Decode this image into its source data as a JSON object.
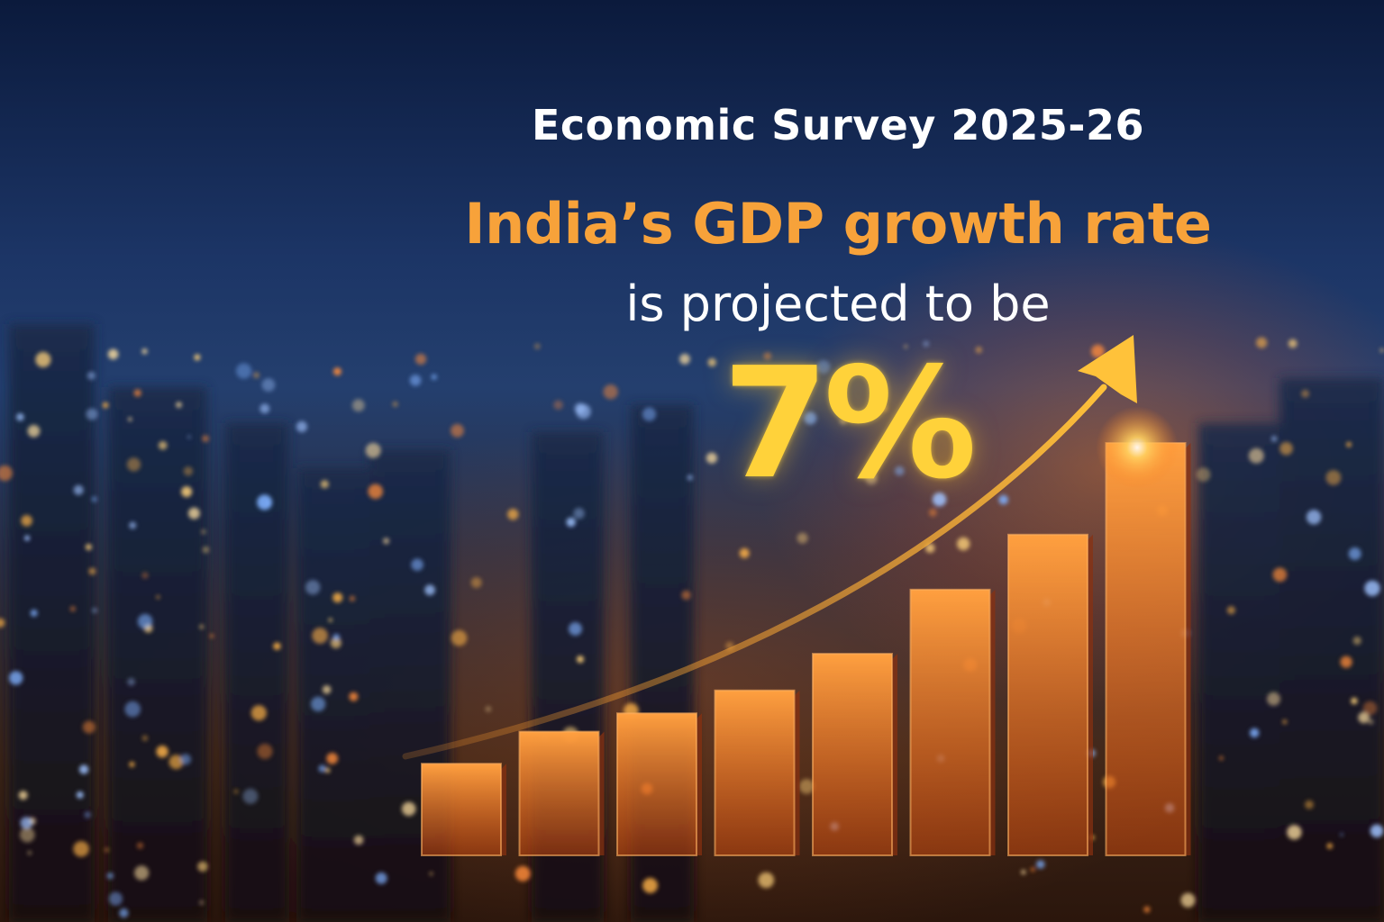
{
  "header": {
    "title": "Economic Survey 2025-26",
    "headline": "India’s GDP growth rate",
    "subline": "is projected to be",
    "value": "7%"
  },
  "colors": {
    "title": "#ffffff",
    "headline": "#f7a23a",
    "value": "#ffd23a",
    "bar_top": "#ffa040",
    "bar_bottom": "#c84a10",
    "arrow": "#ffc23a",
    "sky_top": "#0b1a3c",
    "city_glow": "#ff7a1e"
  },
  "chart_data": {
    "type": "bar",
    "values": [
      1.0,
      1.35,
      1.55,
      1.8,
      2.2,
      2.9,
      3.5,
      4.5
    ],
    "trend_arrow": true
  }
}
